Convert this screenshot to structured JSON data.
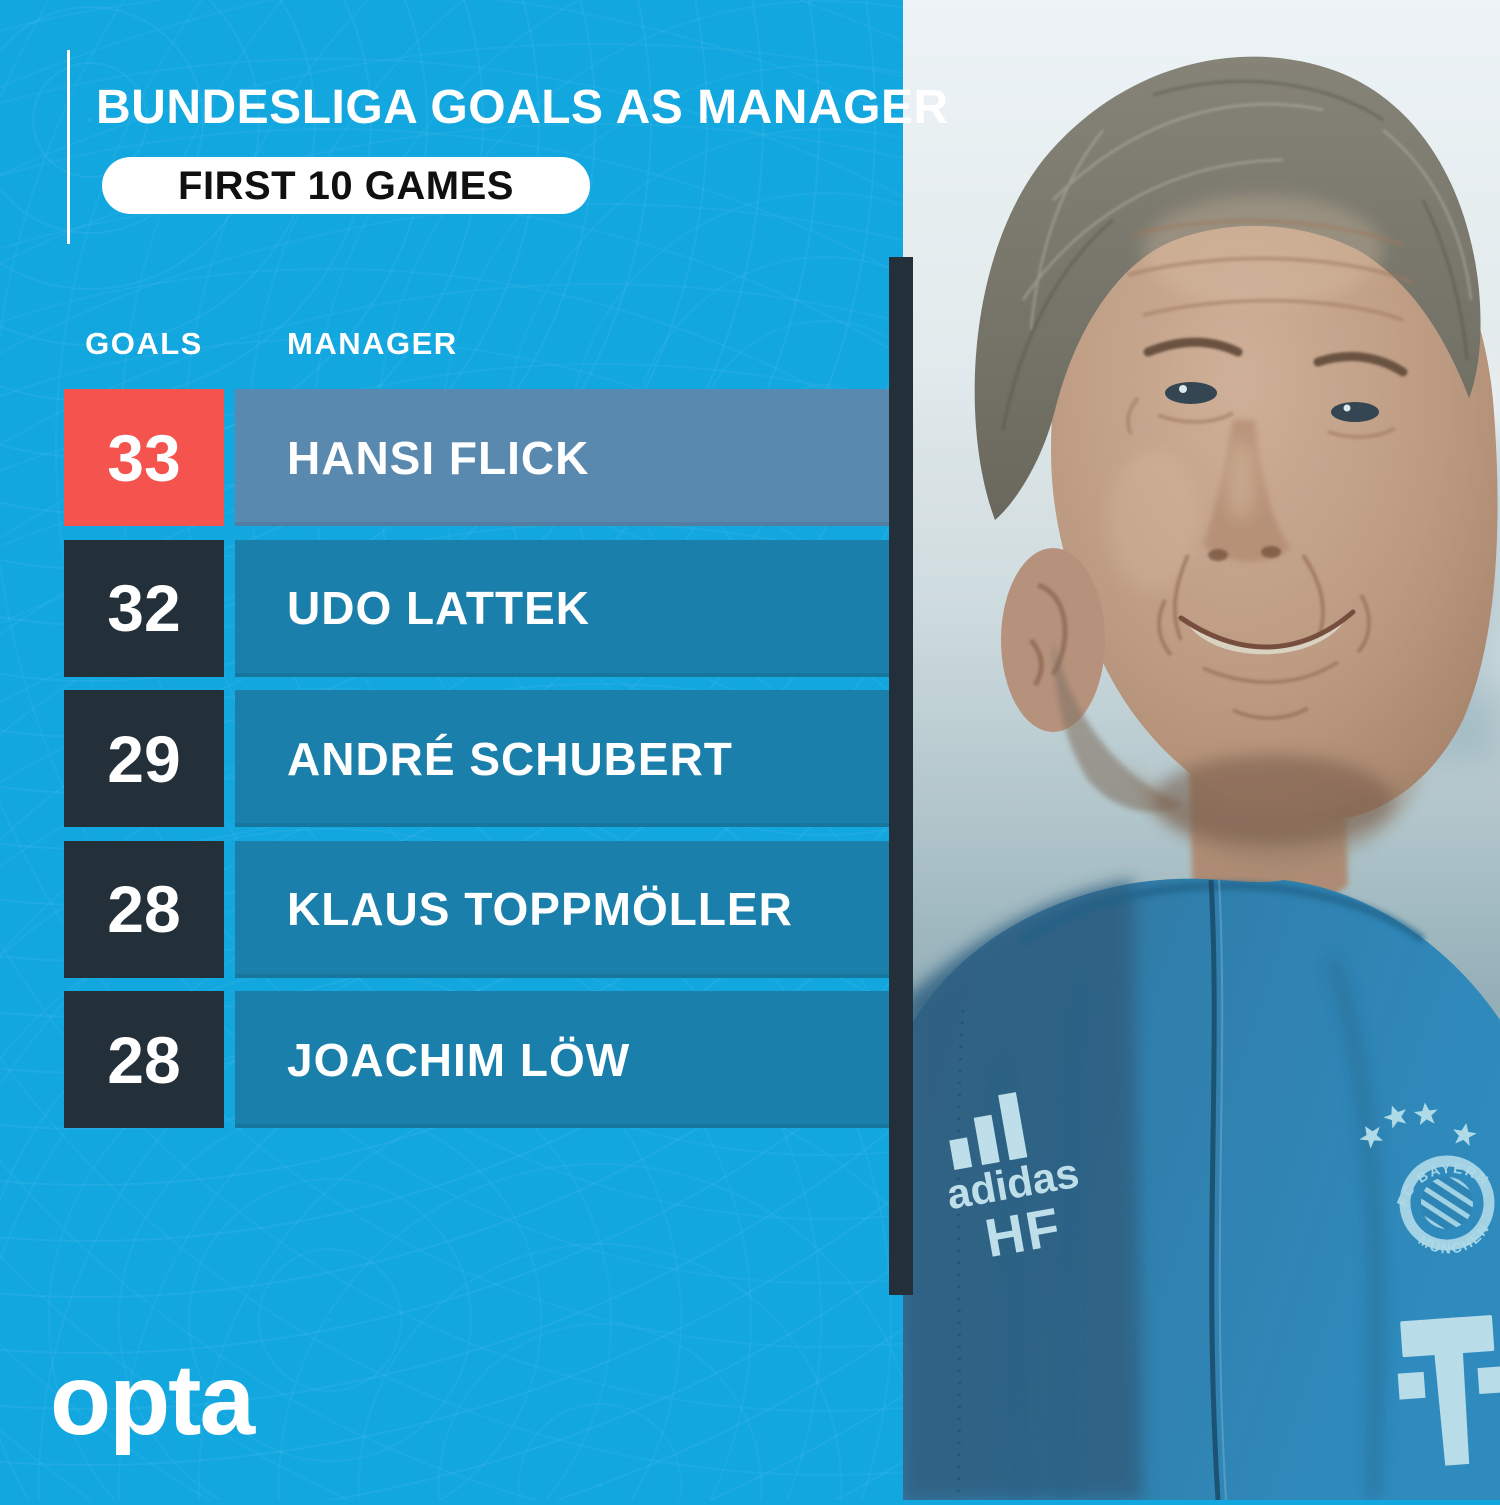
{
  "header": {
    "title": "BUNDESLIGA GOALS AS MANAGER",
    "badge": "FIRST 10 GAMES"
  },
  "table": {
    "columns": {
      "goals": "GOALS",
      "manager": "MANAGER"
    },
    "rows": [
      {
        "goals": "33",
        "manager": "HANSI FLICK",
        "highlight": true
      },
      {
        "goals": "32",
        "manager": "UDO LATTEK",
        "highlight": false
      },
      {
        "goals": "29",
        "manager": "ANDRÉ SCHUBERT",
        "highlight": false
      },
      {
        "goals": "28",
        "manager": "KLAUS TOPPMÖLLER",
        "highlight": false
      },
      {
        "goals": "28",
        "manager": "JOACHIM LÖW",
        "highlight": false
      }
    ]
  },
  "chart_data": {
    "type": "table",
    "title": "BUNDESLIGA GOALS AS MANAGER",
    "subtitle": "FIRST 10 GAMES",
    "columns": [
      "GOALS",
      "MANAGER"
    ],
    "rows": [
      [
        33,
        "HANSI FLICK"
      ],
      [
        32,
        "UDO LATTEK"
      ],
      [
        29,
        "ANDRÉ SCHUBERT"
      ],
      [
        28,
        "KLAUS TOPPMÖLLER"
      ],
      [
        28,
        "JOACHIM LÖW"
      ]
    ],
    "highlighted_row": "HANSI FLICK"
  },
  "branding": {
    "logo": "opta"
  },
  "photo": {
    "subject": "hansi-flick-portrait",
    "jacket_brand": "adidas",
    "jacket_initials": "HF",
    "crest_top": "FC BAYERN",
    "crest_bottom": "MÜNCHEN"
  },
  "colors": {
    "background": "#13A7E0",
    "row_bar": "#1A80AB",
    "row_square": "#243039",
    "highlight_square": "#F4534E",
    "highlight_bar": "#5A89B0",
    "divider": "#243039",
    "text": "#FFFFFF",
    "badge_text": "#101010"
  }
}
